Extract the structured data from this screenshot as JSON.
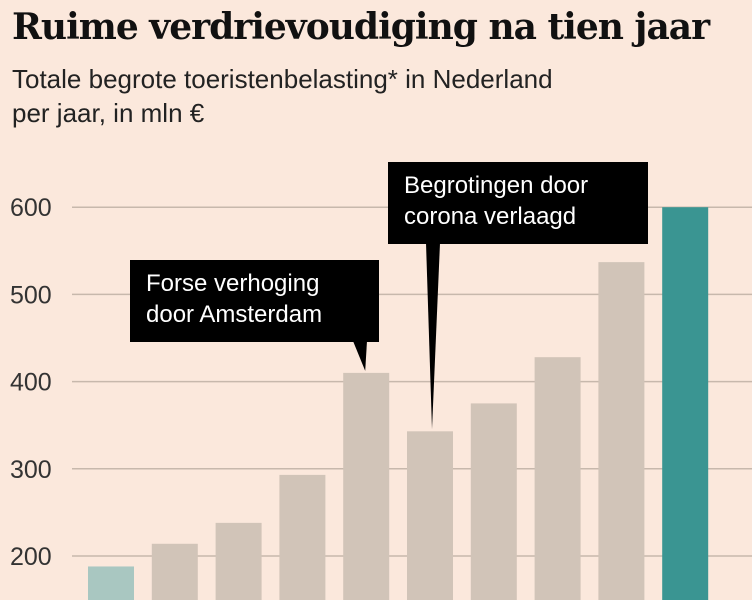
{
  "title": "Ruime verdrievoudiging na tien jaar",
  "subtitle_line1": "Totale begrote toeristenbelasting* in Nederland",
  "subtitle_line2": "per jaar, in mln €",
  "colors": {
    "background": "#fbe8dc",
    "bar_default": "#d1c4b8",
    "bar_first": "#a9c7c1",
    "bar_last": "#3a9592",
    "grid": "#c7b8ac",
    "annotation_bg": "#000000"
  },
  "chart_data": {
    "type": "bar",
    "title": "Ruime verdrievoudiging na tien jaar",
    "subtitle": "Totale begrote toeristenbelasting* in Nederland per jaar, in mln €",
    "xlabel": "",
    "ylabel": "",
    "values": [
      188,
      214,
      238,
      293,
      410,
      343,
      375,
      428,
      537,
      600
    ],
    "yticks": [
      200,
      300,
      400,
      500,
      600
    ],
    "ylim": [
      100,
      650
    ],
    "grid": true,
    "annotations": [
      {
        "bar_index": 4,
        "lines": [
          "Forse verhoging",
          "door Amsterdam"
        ]
      },
      {
        "bar_index": 5,
        "lines": [
          "Begrotingen door",
          "corona verlaagd"
        ]
      }
    ]
  }
}
